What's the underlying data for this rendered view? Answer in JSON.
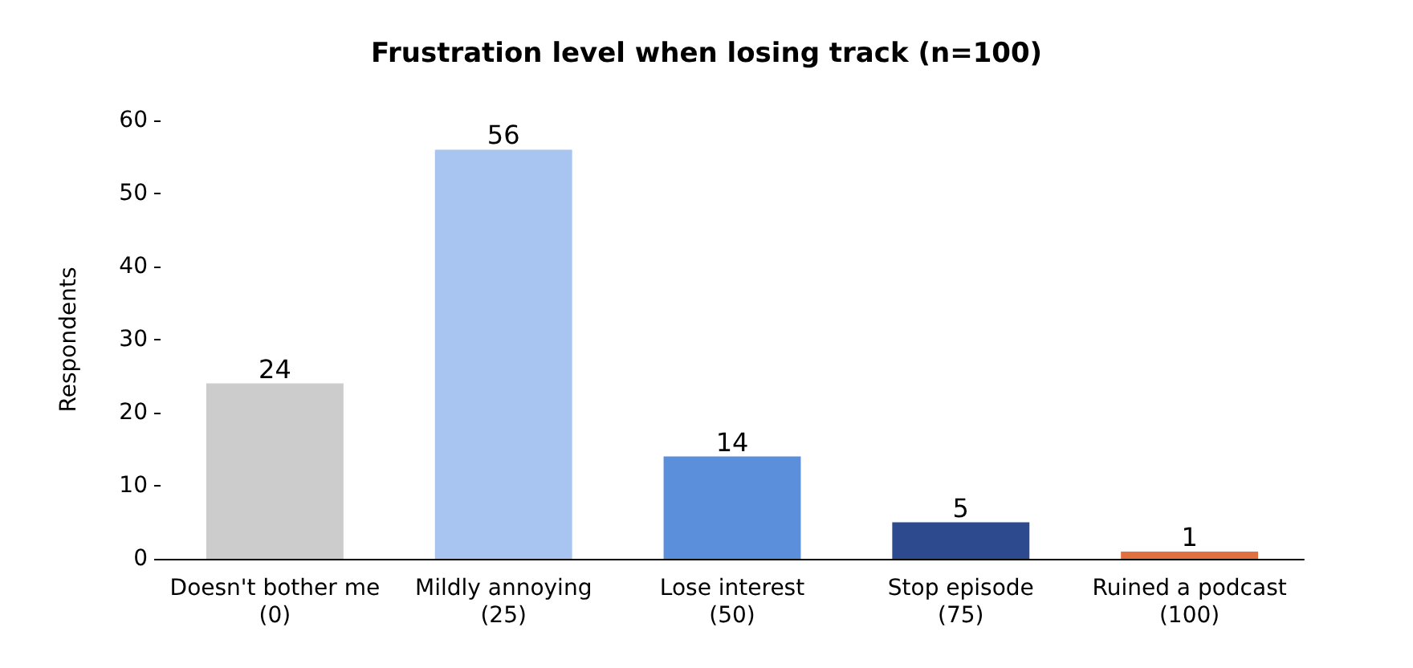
{
  "chart_data": {
    "type": "bar",
    "title": "Frustration level when losing track (n=100)",
    "ylabel": "Respondents",
    "categories": [
      "Doesn't bother me\n(0)",
      "Mildly annoying\n(25)",
      "Lose interest\n(50)",
      "Stop episode\n(75)",
      "Ruined a podcast\n(100)"
    ],
    "values": [
      24,
      56,
      14,
      5,
      1
    ],
    "colors": [
      "#cccccc",
      "#a8c4f0",
      "#5b8edb",
      "#2e4a8f",
      "#e07040"
    ],
    "ylim": [
      0,
      60
    ],
    "yticks": [
      0,
      10,
      20,
      30,
      40,
      50,
      60
    ],
    "grid": false,
    "data_labels": true
  }
}
